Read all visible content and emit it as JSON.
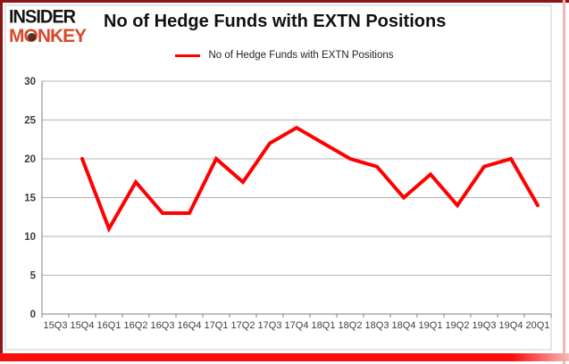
{
  "brand": {
    "name": "Insider Monkey",
    "line1": "INSIDER",
    "line2": "MONKEY",
    "insider_color": "#141414",
    "monkey_color": "#d8492b"
  },
  "header": {
    "title": "No of Hedge Funds with EXTN Positions"
  },
  "legend": {
    "label": "No of Hedge Funds with EXTN Positions",
    "line_color": "#fe0000"
  },
  "chart_data": {
    "type": "line",
    "title": "No of Hedge Funds with EXTN Positions",
    "categories": [
      "15Q3",
      "15Q4",
      "16Q1",
      "16Q2",
      "16Q3",
      "16Q4",
      "17Q1",
      "17Q2",
      "17Q3",
      "17Q4",
      "18Q1",
      "18Q2",
      "18Q3",
      "18Q4",
      "19Q1",
      "19Q2",
      "19Q3",
      "19Q4",
      "20Q1"
    ],
    "series": [
      {
        "name": "No of Hedge Funds with EXTN Positions",
        "color": "#fe0000",
        "values": [
          null,
          20,
          11,
          17,
          13,
          13,
          20,
          17,
          22,
          24,
          22,
          20,
          19,
          15,
          18,
          14,
          19,
          20,
          14
        ]
      }
    ],
    "xlabel": "",
    "ylabel": "",
    "ylim": [
      0,
      30
    ],
    "yticks": [
      0,
      5,
      10,
      15,
      20,
      25,
      30
    ],
    "grid": "horizontal",
    "legend_position": "top-center",
    "note": "15Q3 category has no data point; line begins at 15Q4"
  },
  "frame": {
    "border_top_color": "#8f1515",
    "border_left_color": "#8f1515",
    "border_right_color": "#efb6b6",
    "border_bottom_color": "#fb0d0d",
    "chart_frame_color": "#cccccc",
    "gridline_color": "#b3b3b3",
    "axis_color": "#7f7f7f",
    "tick_label_color": "#3c3c3c"
  }
}
